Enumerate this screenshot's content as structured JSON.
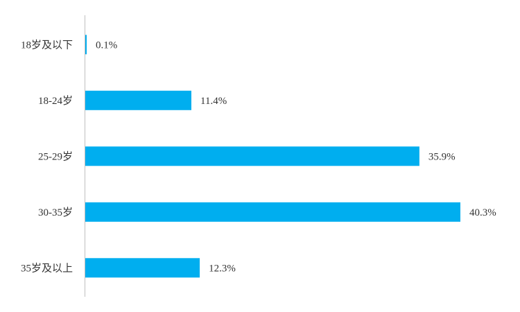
{
  "chart_data": {
    "type": "bar",
    "orientation": "horizontal",
    "categories": [
      "18岁及以下",
      "18-24岁",
      "25-29岁",
      "30-35岁",
      "35岁及以上"
    ],
    "values": [
      0.1,
      11.4,
      35.9,
      40.3,
      12.3
    ],
    "value_labels": [
      "0.1%",
      "11.4%",
      "35.9%",
      "40.3%",
      "12.3%"
    ],
    "unit": "%",
    "title": "",
    "xlabel": "",
    "ylabel": "",
    "xlim": [
      0,
      40.3
    ],
    "grid": false,
    "legend": "none",
    "colors": {
      "bar": "#00AEEF",
      "axis": "#BFBFBF",
      "text": "#333333"
    }
  }
}
